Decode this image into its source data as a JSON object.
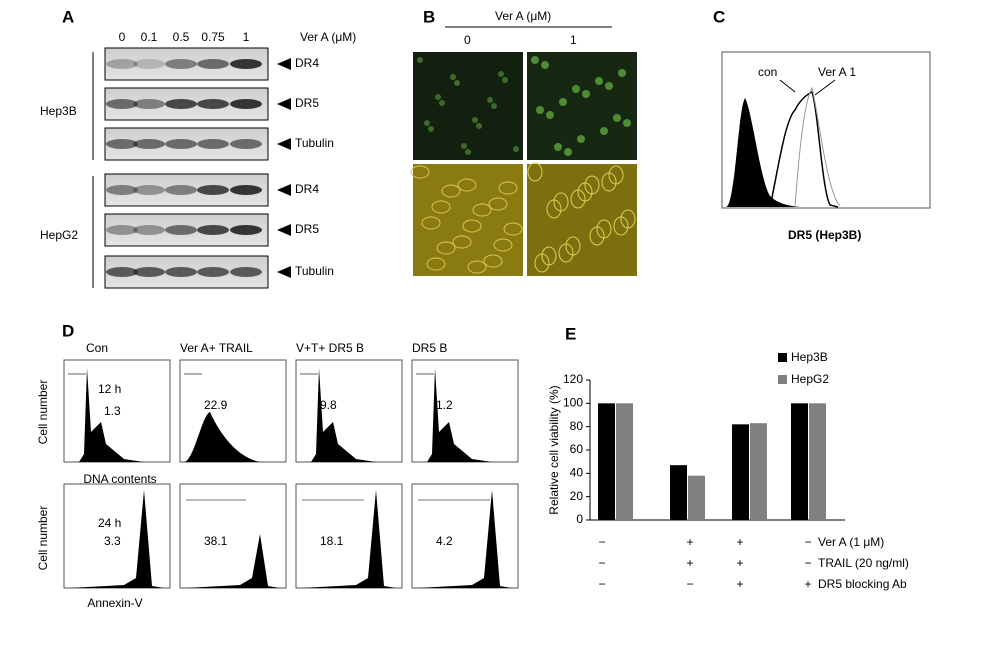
{
  "panels": {
    "A": {
      "label": "A",
      "doses": [
        "0",
        "0.1",
        "0.5",
        "0.75",
        "1"
      ],
      "unit": "Ver A (μM)",
      "cell_lines": [
        "Hep3B",
        "HepG2"
      ],
      "blots": [
        "DR4",
        "DR5",
        "Tubulin",
        "DR4",
        "DR5",
        "Tubulin"
      ]
    },
    "B": {
      "label": "B",
      "unit": "Ver A (μM)",
      "doses": [
        "0",
        "1"
      ]
    },
    "C": {
      "label": "C",
      "con": "con",
      "treated": "Ver A 1",
      "xlabel": "DR5 (Hep3B)"
    },
    "D": {
      "label": "D",
      "columns": [
        "Con",
        "Ver A+ TRAIL",
        "V+T+ DR5 B",
        "DR5 B"
      ],
      "ylabel": "Cell number",
      "row1_xlabel": "DNA contents",
      "row2_xlabel": "Annexin-V",
      "row1_time": "12 h",
      "row2_time": "24 h",
      "row1_values": [
        "1.3",
        "22.9",
        "9.8",
        "1.2"
      ],
      "row2_values": [
        "3.3",
        "38.1",
        "18.1",
        "4.2"
      ]
    },
    "E": {
      "label": "E",
      "treatments": [
        {
          "name": "Ver A (1 μM)",
          "signs": [
            "−",
            "+",
            "+",
            "−"
          ]
        },
        {
          "name": "TRAIL (20 ng/ml)",
          "signs": [
            "−",
            "+",
            "+",
            "−"
          ]
        },
        {
          "name": "DR5 blocking Ab",
          "signs": [
            "−",
            "−",
            "+",
            "+"
          ]
        }
      ]
    }
  },
  "chart_data": {
    "type": "bar",
    "ylabel": "Relative cell viability (%)",
    "categories": [
      null,
      null,
      null,
      null
    ],
    "series": [
      {
        "name": "Hep3B",
        "color": "#000000",
        "values": [
          100,
          47,
          82,
          100
        ]
      },
      {
        "name": "HepG2",
        "color": "#808080",
        "values": [
          100,
          38,
          83,
          100
        ]
      }
    ],
    "ylim": [
      0,
      120
    ],
    "yticks": [
      0,
      20,
      40,
      60,
      80,
      100,
      120
    ],
    "grid": false
  }
}
